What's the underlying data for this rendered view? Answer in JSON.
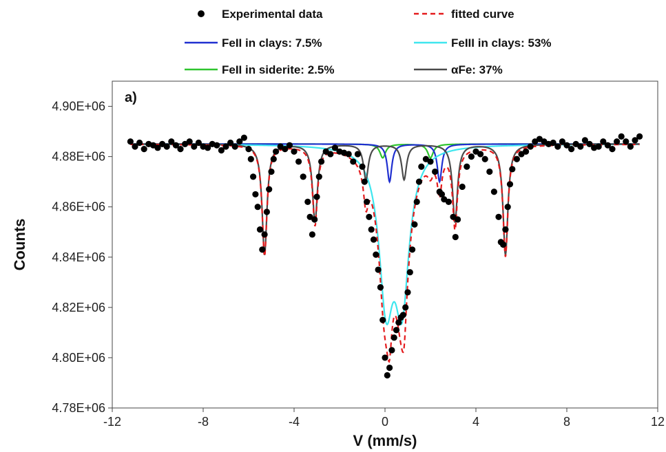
{
  "chart_data": {
    "type": "scatter",
    "panel_label": "a)",
    "xlabel": "V (mm/s)",
    "ylabel": "Counts",
    "xlim": [
      -12,
      12
    ],
    "ylim": [
      4780000,
      4910000
    ],
    "x_ticks": [
      -12,
      -8,
      -4,
      0,
      4,
      8,
      12
    ],
    "x_tick_labels": [
      "-12",
      "-8",
      "-4",
      "0",
      "4",
      "8",
      "12"
    ],
    "y_ticks": [
      4780000,
      4800000,
      4820000,
      4840000,
      4860000,
      4880000,
      4900000
    ],
    "y_tick_labels": [
      "4.78E+06",
      "4.80E+06",
      "4.82E+06",
      "4.84E+06",
      "4.86E+06",
      "4.88E+06",
      "4.90E+06"
    ],
    "grid": false,
    "legend_placement": "top",
    "baseline": 4885000,
    "colors": {
      "experimental": "#000000",
      "fitted": "#e41a1c",
      "fe2_clays": "#1f2fd0",
      "fe3_clays": "#3ee6ee",
      "fe2_siderite": "#2ec42e",
      "alpha_fe": "#4a4a4a"
    },
    "series": [
      {
        "key": "experimental",
        "name": "Experimental data",
        "style": "markers",
        "x": [
          -11.2,
          -11.0,
          -10.8,
          -10.6,
          -10.4,
          -10.2,
          -10.0,
          -9.8,
          -9.6,
          -9.4,
          -9.2,
          -9.0,
          -8.8,
          -8.6,
          -8.4,
          -8.2,
          -8.0,
          -7.8,
          -7.6,
          -7.4,
          -7.2,
          -7.0,
          -6.8,
          -6.6,
          -6.4,
          -6.2,
          -6.0,
          -5.9,
          -5.8,
          -5.7,
          -5.6,
          -5.5,
          -5.4,
          -5.3,
          -5.2,
          -5.1,
          -5.0,
          -4.9,
          -4.8,
          -4.6,
          -4.4,
          -4.2,
          -4.0,
          -3.8,
          -3.6,
          -3.4,
          -3.3,
          -3.2,
          -3.1,
          -3.0,
          -2.9,
          -2.8,
          -2.6,
          -2.4,
          -2.2,
          -2.0,
          -1.8,
          -1.6,
          -1.4,
          -1.2,
          -1.0,
          -0.9,
          -0.8,
          -0.7,
          -0.6,
          -0.5,
          -0.4,
          -0.3,
          -0.2,
          -0.1,
          0.0,
          0.1,
          0.2,
          0.3,
          0.4,
          0.5,
          0.6,
          0.7,
          0.8,
          0.9,
          1.0,
          1.1,
          1.2,
          1.3,
          1.4,
          1.5,
          1.6,
          1.8,
          2.0,
          2.2,
          2.4,
          2.5,
          2.6,
          2.8,
          3.0,
          3.1,
          3.2,
          3.4,
          3.6,
          3.8,
          4.0,
          4.2,
          4.4,
          4.6,
          4.8,
          5.0,
          5.1,
          5.2,
          5.3,
          5.4,
          5.5,
          5.6,
          5.8,
          6.0,
          6.2,
          6.4,
          6.6,
          6.8,
          7.0,
          7.2,
          7.4,
          7.6,
          7.8,
          8.0,
          8.2,
          8.4,
          8.6,
          8.8,
          9.0,
          9.2,
          9.4,
          9.6,
          9.8,
          10.0,
          10.2,
          10.4,
          10.6,
          10.8,
          11.0,
          11.2
        ],
        "y": [
          4886000,
          4884000,
          4885500,
          4883000,
          4885000,
          4884500,
          4883500,
          4885000,
          4884000,
          4886000,
          4884500,
          4883000,
          4885000,
          4886000,
          4884000,
          4885500,
          4884000,
          4883500,
          4885000,
          4884500,
          4882500,
          4884000,
          4885500,
          4884000,
          4886000,
          4887500,
          4883000,
          4879000,
          4872000,
          4865000,
          4860000,
          4851000,
          4843000,
          4849000,
          4858000,
          4867000,
          4874000,
          4879000,
          4882000,
          4884000,
          4883000,
          4884500,
          4882000,
          4878000,
          4872000,
          4862000,
          4856000,
          4849000,
          4855000,
          4864000,
          4872000,
          4878000,
          4882000,
          4881000,
          4883500,
          4882000,
          4881500,
          4881000,
          4878000,
          4881000,
          4876000,
          4870000,
          4862000,
          4856000,
          4851000,
          4847000,
          4841000,
          4835000,
          4828000,
          4815000,
          4800000,
          4793000,
          4796000,
          4803000,
          4808000,
          4811000,
          4814000,
          4816000,
          4817000,
          4820000,
          4826000,
          4834000,
          4843000,
          4853000,
          4862000,
          4870000,
          4876000,
          4879000,
          4878000,
          4874000,
          4866000,
          4865000,
          4863000,
          4862000,
          4856000,
          4848000,
          4855000,
          4868000,
          4876000,
          4880000,
          4882000,
          4881000,
          4879000,
          4874000,
          4866000,
          4856000,
          4846000,
          4845000,
          4851000,
          4860000,
          4869000,
          4875000,
          4879000,
          4881000,
          4882000,
          4884000,
          4886000,
          4887000,
          4886000,
          4885000,
          4885500,
          4884000,
          4886000,
          4884500,
          4883000,
          4885000,
          4884000,
          4886500,
          4885000,
          4883500,
          4884000,
          4886000,
          4884500,
          4883000,
          4886000,
          4888000,
          4886000,
          4884000,
          4886500,
          4888000
        ]
      },
      {
        "key": "fitted",
        "name": "fitted curve",
        "style": "dashed"
      },
      {
        "key": "fe2_clays",
        "name": "FeII in clays: 7.5%",
        "style": "line",
        "components": [
          {
            "center": 0.2,
            "depth": 15000,
            "hwhm": 0.12
          },
          {
            "center": 2.4,
            "depth": 15000,
            "hwhm": 0.12
          }
        ]
      },
      {
        "key": "fe3_clays",
        "name": "FeIII in clays: 53%",
        "style": "line",
        "components": [
          {
            "center": 0.05,
            "depth": 58000,
            "hwhm": 0.38
          },
          {
            "center": 0.75,
            "depth": 58000,
            "hwhm": 0.38
          }
        ]
      },
      {
        "key": "fe2_siderite",
        "name": "FeII in siderite: 2.5%",
        "style": "line",
        "components": [
          {
            "center": -0.1,
            "depth": 5500,
            "hwhm": 0.15
          },
          {
            "center": 2.0,
            "depth": 5500,
            "hwhm": 0.15
          }
        ]
      },
      {
        "key": "alpha_fe",
        "name": "αFe: 37%",
        "style": "line",
        "components": [
          {
            "center": -5.3,
            "depth": 44000,
            "hwhm": 0.13
          },
          {
            "center": -3.08,
            "depth": 31000,
            "hwhm": 0.13
          },
          {
            "center": -0.84,
            "depth": 14000,
            "hwhm": 0.13
          },
          {
            "center": 0.84,
            "depth": 14000,
            "hwhm": 0.13
          },
          {
            "center": 3.08,
            "depth": 31000,
            "hwhm": 0.13
          },
          {
            "center": 5.3,
            "depth": 44000,
            "hwhm": 0.13
          }
        ]
      }
    ]
  }
}
